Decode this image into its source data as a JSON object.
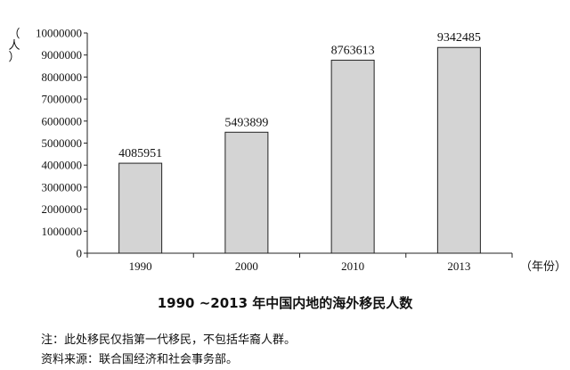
{
  "chart_data": {
    "type": "bar",
    "title": "1990 ~2013 年中国内地的海外移民人数",
    "xlabel": "（年份）",
    "ylabel": "（人）",
    "categories": [
      "1990",
      "2000",
      "2010",
      "2013"
    ],
    "values": [
      4085951,
      5493899,
      8763613,
      9342485
    ],
    "ylim": [
      0,
      10000000
    ],
    "yticks": [
      "0",
      "1000000",
      "2000000",
      "3000000",
      "4000000",
      "5000000",
      "6000000",
      "7000000",
      "8000000",
      "9000000",
      "10000000"
    ],
    "grid": false,
    "bar_color": "#d4d4d4",
    "edge_color": "#222222"
  },
  "notes": {
    "note1": "注：此处移民仅指第一代移民，不包括华裔人群。",
    "note2": "资料来源：联合国经济和社会事务部。"
  }
}
